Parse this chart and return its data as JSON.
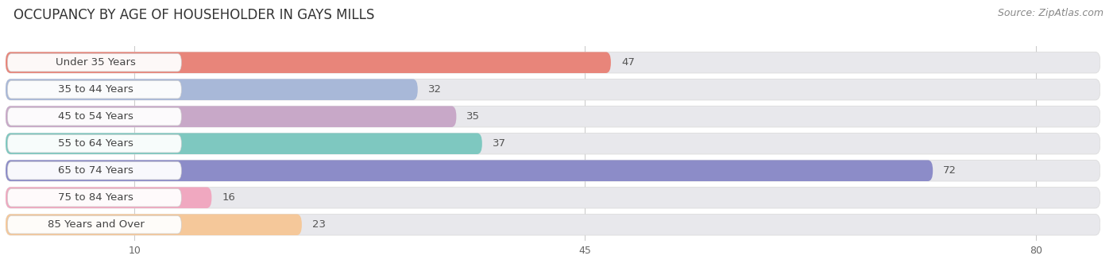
{
  "title": "OCCUPANCY BY AGE OF HOUSEHOLDER IN GAYS MILLS",
  "source": "Source: ZipAtlas.com",
  "categories": [
    "Under 35 Years",
    "35 to 44 Years",
    "45 to 54 Years",
    "55 to 64 Years",
    "65 to 74 Years",
    "75 to 84 Years",
    "85 Years and Over"
  ],
  "values": [
    47,
    32,
    35,
    37,
    72,
    16,
    23
  ],
  "bar_colors": [
    "#e8857a",
    "#a8b8d8",
    "#c8a8c8",
    "#7ec8c0",
    "#8c8cc8",
    "#f0a8c0",
    "#f5c89a"
  ],
  "background_color": "#ffffff",
  "bar_bg_color": "#e8e8ec",
  "xticks": [
    10,
    45,
    80
  ],
  "xmax": 85,
  "title_fontsize": 12,
  "label_fontsize": 9.5,
  "value_fontsize": 9.5,
  "source_fontsize": 9
}
